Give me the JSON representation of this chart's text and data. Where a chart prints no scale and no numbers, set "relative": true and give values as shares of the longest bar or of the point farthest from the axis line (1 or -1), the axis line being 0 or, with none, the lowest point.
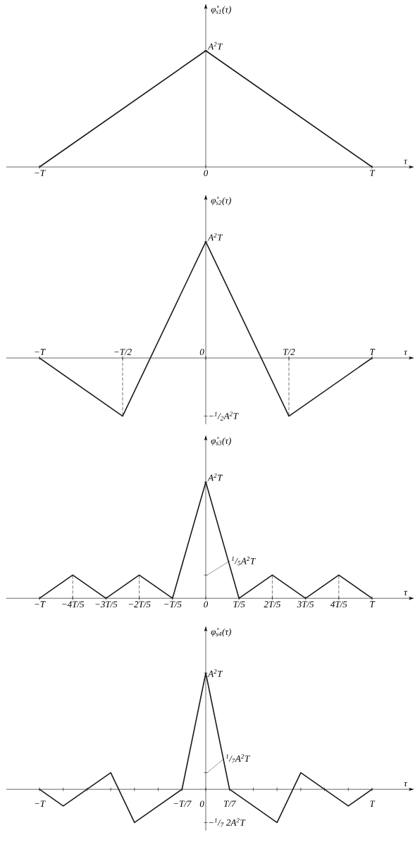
{
  "chart_data": [
    {
      "type": "line",
      "relative": true,
      "xlabel": "τ",
      "ylabel": "φ̊$_{s1}$(τ)",
      "categories": [
        "−T",
        "0",
        "T"
      ],
      "series": [
        {
          "color": "#1a1a1a",
          "values": [
            0,
            1,
            0
          ]
        }
      ],
      "annotations": [
        "A$^{2}$T"
      ]
    },
    {
      "type": "line",
      "relative": true,
      "xlabel": "τ",
      "ylabel": "φ̊$_{s2}$(τ)",
      "categories": [
        "−T",
        "−T/2",
        "0",
        "T/2",
        "T"
      ],
      "series": [
        {
          "color": "#1a1a1a",
          "values": [
            0,
            -0.5,
            1,
            -0.5,
            0
          ]
        },
        {
          "color": "#1a1a1a",
          "line_style": "dashed",
          "x": [
            "−T/2",
            "−T/2"
          ],
          "values": [
            0,
            -0.5
          ]
        },
        {
          "color": "#1a1a1a",
          "line_style": "dashed",
          "x": [
            "T/2",
            "T/2"
          ],
          "values": [
            0,
            -0.5
          ]
        }
      ],
      "annotations": [
        "A$^{2}$T",
        "−$^{1}$/$_{2}$A$^{2}$T"
      ]
    },
    {
      "type": "line",
      "relative": true,
      "xlabel": "τ",
      "ylabel": "φ̊$_{s3}$(τ)",
      "categories": [
        "−T",
        "−4T/5",
        "−3T/5",
        "−2T/5",
        "−T/5",
        "0",
        "T/5",
        "2T/5",
        "3T/5",
        "4T/5",
        "T"
      ],
      "series": [
        {
          "color": "#1a1a1a",
          "values": [
            0,
            0.2,
            0,
            0.2,
            0,
            1,
            0,
            0.2,
            0,
            0.2,
            0
          ]
        },
        {
          "color": "#1a1a1a",
          "line_style": "dashed",
          "x": [
            "−4T/5",
            "−4T/5"
          ],
          "values": [
            0,
            0.2
          ]
        },
        {
          "color": "#1a1a1a",
          "line_style": "dashed",
          "x": [
            "−2T/5",
            "−2T/5"
          ],
          "values": [
            0,
            0.2
          ]
        },
        {
          "color": "#1a1a1a",
          "line_style": "dashed",
          "x": [
            "2T/5",
            "2T/5"
          ],
          "values": [
            0,
            0.2
          ]
        },
        {
          "color": "#1a1a1a",
          "line_style": "dashed",
          "x": [
            "4T/5",
            "4T/5"
          ],
          "values": [
            0,
            0.2
          ]
        }
      ],
      "annotations": [
        "A$^{2}$T",
        "$^{1}$/$_{5}$A$^{2}$T"
      ]
    },
    {
      "type": "line",
      "relative": true,
      "xlabel": "τ",
      "ylabel": "φ̊$_{s4}$(τ)",
      "categories": [
        "−T",
        null,
        null,
        null,
        null,
        null,
        "−T/7",
        "0",
        "T/7",
        null,
        null,
        null,
        null,
        null,
        "T"
      ],
      "series": [
        {
          "color": "#1a1a1a",
          "values": [
            0,
            -0.143,
            0,
            0.143,
            -0.286,
            -0.143,
            0,
            1,
            0,
            -0.143,
            -0.286,
            0.143,
            0,
            -0.143,
            0
          ]
        }
      ],
      "annotations": [
        "A$^{2}$T",
        "$^{1}$/$_{7}$A$^{2}$T",
        "−$^{1}$/$_{7}$ 2A$^{2}$T"
      ]
    }
  ]
}
